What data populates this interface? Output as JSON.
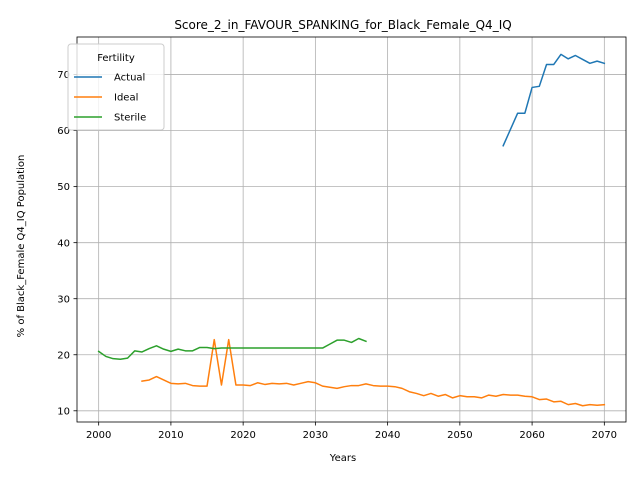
{
  "chart_data": {
    "type": "line",
    "title": "Score_2_in_FAVOUR_SPANKING_for_Black_Female_Q4_IQ",
    "xlabel": "Years",
    "ylabel": "% of Black_Female Q4_IQ Population",
    "xlim": [
      1997,
      2073
    ],
    "ylim": [
      8,
      76.7
    ],
    "xticks": [
      2000,
      2010,
      2020,
      2030,
      2040,
      2050,
      2060,
      2070
    ],
    "yticks": [
      10,
      20,
      30,
      40,
      50,
      60,
      70
    ],
    "grid": true,
    "legend": {
      "title": "Fertility",
      "placement": "top-left"
    },
    "series": [
      {
        "name": "Actual",
        "color": "#1f77b4",
        "x": [
          2056,
          2057,
          2058,
          2059,
          2060,
          2061,
          2062,
          2063,
          2064,
          2065,
          2066,
          2067,
          2068,
          2069,
          2070
        ],
        "y": [
          57.3,
          60.2,
          63.1,
          63.1,
          67.7,
          67.9,
          71.8,
          71.8,
          73.6,
          72.8,
          73.4,
          72.7,
          72.0,
          72.4,
          72.0
        ]
      },
      {
        "name": "Ideal",
        "color": "#ff7f0e",
        "x": [
          2006,
          2007,
          2008,
          2009,
          2010,
          2011,
          2012,
          2013,
          2014,
          2015,
          2016,
          2017,
          2018,
          2019,
          2020,
          2021,
          2022,
          2023,
          2024,
          2025,
          2026,
          2027,
          2028,
          2029,
          2030,
          2031,
          2032,
          2033,
          2034,
          2035,
          2036,
          2037,
          2038,
          2039,
          2040,
          2041,
          2042,
          2043,
          2044,
          2045,
          2046,
          2047,
          2048,
          2049,
          2050,
          2051,
          2052,
          2053,
          2054,
          2055,
          2056,
          2057,
          2058,
          2059,
          2060,
          2061,
          2062,
          2063,
          2064,
          2065,
          2066,
          2067,
          2068,
          2069,
          2070
        ],
        "y": [
          15.3,
          15.5,
          16.1,
          15.5,
          14.9,
          14.8,
          14.9,
          14.5,
          14.4,
          14.4,
          22.7,
          14.6,
          22.7,
          14.6,
          14.6,
          14.5,
          15.0,
          14.7,
          14.9,
          14.8,
          14.9,
          14.6,
          14.9,
          15.2,
          15.0,
          14.4,
          14.2,
          14.0,
          14.3,
          14.5,
          14.5,
          14.8,
          14.5,
          14.4,
          14.4,
          14.3,
          14.0,
          13.4,
          13.1,
          12.7,
          13.1,
          12.6,
          12.9,
          12.3,
          12.7,
          12.5,
          12.5,
          12.3,
          12.8,
          12.6,
          12.9,
          12.8,
          12.8,
          12.6,
          12.5,
          12.0,
          12.1,
          11.6,
          11.7,
          11.1,
          11.3,
          10.9,
          11.1,
          11.0,
          11.1
        ]
      },
      {
        "name": "Sterile",
        "color": "#2ca02c",
        "x": [
          2000,
          2001,
          2002,
          2003,
          2004,
          2005,
          2006,
          2007,
          2008,
          2009,
          2010,
          2011,
          2012,
          2013,
          2014,
          2015,
          2016,
          2017,
          2018,
          2019,
          2020,
          2021,
          2022,
          2023,
          2024,
          2025,
          2026,
          2027,
          2028,
          2029,
          2030,
          2031,
          2032,
          2033,
          2034,
          2035,
          2036,
          2037
        ],
        "y": [
          20.6,
          19.7,
          19.3,
          19.2,
          19.4,
          20.7,
          20.5,
          21.1,
          21.6,
          21.0,
          20.6,
          21.0,
          20.7,
          20.7,
          21.3,
          21.3,
          21.1,
          21.2,
          21.2,
          21.2,
          21.2,
          21.2,
          21.2,
          21.2,
          21.2,
          21.2,
          21.2,
          21.2,
          21.2,
          21.2,
          21.2,
          21.2,
          21.9,
          22.6,
          22.6,
          22.2,
          22.9,
          22.4
        ]
      }
    ]
  }
}
